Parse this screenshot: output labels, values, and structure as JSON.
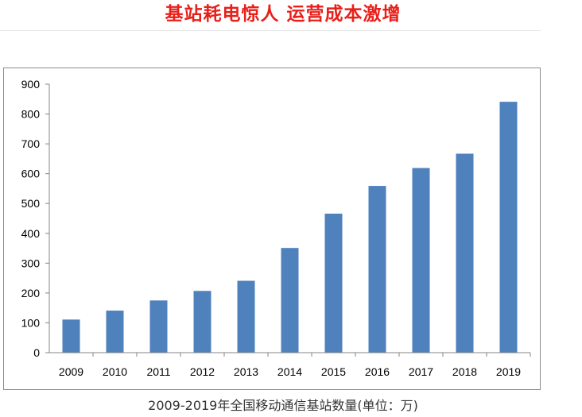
{
  "header": {
    "title": "基站耗电惊人 运营成本激增"
  },
  "caption": "2009-2019年全国移动通信基站数量(单位：万)",
  "colors": {
    "title": "#e8201a",
    "bar": "#4f81bd",
    "axis": "#868686",
    "frame": "#8c8c8c"
  },
  "chart_data": {
    "type": "bar",
    "title": "",
    "xlabel": "",
    "ylabel": "",
    "categories": [
      "2009",
      "2010",
      "2011",
      "2012",
      "2013",
      "2014",
      "2015",
      "2016",
      "2017",
      "2018",
      "2019"
    ],
    "values": [
      111,
      141,
      175,
      207,
      241,
      351,
      466,
      559,
      619,
      667,
      841
    ],
    "ylim": [
      0,
      900
    ],
    "yticks": [
      0,
      100,
      200,
      300,
      400,
      500,
      600,
      700,
      800,
      900
    ],
    "grid": false,
    "legend": "none"
  }
}
